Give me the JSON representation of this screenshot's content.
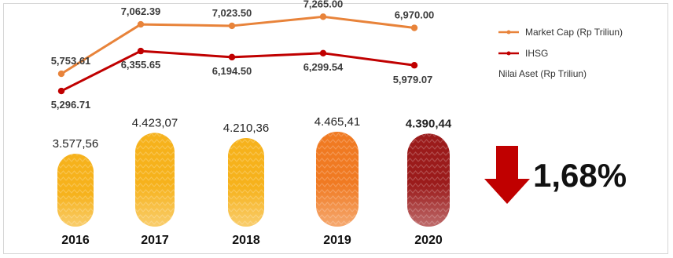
{
  "chart_data": [
    {
      "type": "line",
      "categories": [
        "2016",
        "2017",
        "2018",
        "2019",
        "2020"
      ],
      "series": [
        {
          "name": "Market Cap (Rp Triliun)",
          "color": "#e8833a",
          "values": [
            5753.61,
            7062.39,
            7023.5,
            7265.0,
            6970.0
          ],
          "labels": [
            "5,753.61",
            "7,062.39",
            "7,023.50",
            "7,265.00",
            "6,970.00"
          ]
        },
        {
          "name": "IHSG",
          "color": "#c00000",
          "values": [
            5296.71,
            6355.65,
            6194.5,
            6299.54,
            5979.07
          ],
          "labels": [
            "5,296.71",
            "6,355.65",
            "6,194.50",
            "6,299.54",
            "5,979.07"
          ]
        }
      ],
      "ylim": [
        4800,
        7500
      ],
      "grid": false,
      "legend": "right"
    },
    {
      "type": "bar",
      "title": "Nilai Aset (Rp Triliun)",
      "categories": [
        "2016",
        "2017",
        "2018",
        "2019",
        "2020"
      ],
      "values": [
        3577.56,
        4423.07,
        4210.36,
        4465.41,
        4390.44
      ],
      "labels": [
        "3.577,56",
        "4.423,07",
        "4.210,36",
        "4.465,41",
        "4.390,44"
      ],
      "colors": [
        "#f6b21c",
        "#f6b21c",
        "#f6b21c",
        "#f07a22",
        "#9b1b1b"
      ],
      "highlight_index": 4
    }
  ],
  "change": {
    "value": "1,68%",
    "direction": "down",
    "arrow_color": "#c00000"
  }
}
